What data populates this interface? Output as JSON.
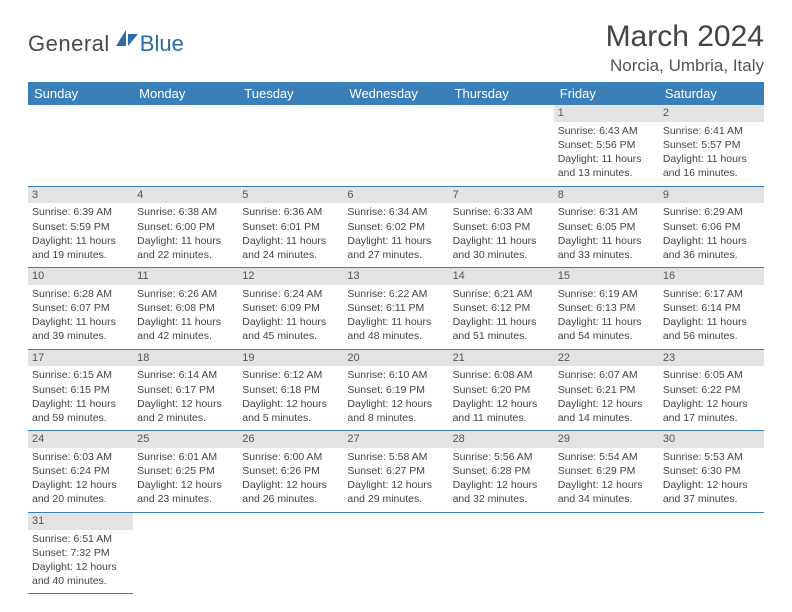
{
  "logo": {
    "general": "General",
    "blue": "Blue"
  },
  "title": "March 2024",
  "location": "Norcia, Umbria, Italy",
  "colors": {
    "header_bg": "#3a7fb8",
    "header_text": "#ffffff",
    "daynum_bg": "#e3e3e3",
    "row_border": "#3a7fb8",
    "body_text": "#444444",
    "logo_gray": "#4a4a4a",
    "logo_blue": "#2a6da8"
  },
  "weekdays": [
    "Sunday",
    "Monday",
    "Tuesday",
    "Wednesday",
    "Thursday",
    "Friday",
    "Saturday"
  ],
  "first_weekday_index": 5,
  "days": [
    {
      "n": 1,
      "sunrise": "6:43 AM",
      "sunset": "5:56 PM",
      "daylight": "11 hours and 13 minutes."
    },
    {
      "n": 2,
      "sunrise": "6:41 AM",
      "sunset": "5:57 PM",
      "daylight": "11 hours and 16 minutes."
    },
    {
      "n": 3,
      "sunrise": "6:39 AM",
      "sunset": "5:59 PM",
      "daylight": "11 hours and 19 minutes."
    },
    {
      "n": 4,
      "sunrise": "6:38 AM",
      "sunset": "6:00 PM",
      "daylight": "11 hours and 22 minutes."
    },
    {
      "n": 5,
      "sunrise": "6:36 AM",
      "sunset": "6:01 PM",
      "daylight": "11 hours and 24 minutes."
    },
    {
      "n": 6,
      "sunrise": "6:34 AM",
      "sunset": "6:02 PM",
      "daylight": "11 hours and 27 minutes."
    },
    {
      "n": 7,
      "sunrise": "6:33 AM",
      "sunset": "6:03 PM",
      "daylight": "11 hours and 30 minutes."
    },
    {
      "n": 8,
      "sunrise": "6:31 AM",
      "sunset": "6:05 PM",
      "daylight": "11 hours and 33 minutes."
    },
    {
      "n": 9,
      "sunrise": "6:29 AM",
      "sunset": "6:06 PM",
      "daylight": "11 hours and 36 minutes."
    },
    {
      "n": 10,
      "sunrise": "6:28 AM",
      "sunset": "6:07 PM",
      "daylight": "11 hours and 39 minutes."
    },
    {
      "n": 11,
      "sunrise": "6:26 AM",
      "sunset": "6:08 PM",
      "daylight": "11 hours and 42 minutes."
    },
    {
      "n": 12,
      "sunrise": "6:24 AM",
      "sunset": "6:09 PM",
      "daylight": "11 hours and 45 minutes."
    },
    {
      "n": 13,
      "sunrise": "6:22 AM",
      "sunset": "6:11 PM",
      "daylight": "11 hours and 48 minutes."
    },
    {
      "n": 14,
      "sunrise": "6:21 AM",
      "sunset": "6:12 PM",
      "daylight": "11 hours and 51 minutes."
    },
    {
      "n": 15,
      "sunrise": "6:19 AM",
      "sunset": "6:13 PM",
      "daylight": "11 hours and 54 minutes."
    },
    {
      "n": 16,
      "sunrise": "6:17 AM",
      "sunset": "6:14 PM",
      "daylight": "11 hours and 56 minutes."
    },
    {
      "n": 17,
      "sunrise": "6:15 AM",
      "sunset": "6:15 PM",
      "daylight": "11 hours and 59 minutes."
    },
    {
      "n": 18,
      "sunrise": "6:14 AM",
      "sunset": "6:17 PM",
      "daylight": "12 hours and 2 minutes."
    },
    {
      "n": 19,
      "sunrise": "6:12 AM",
      "sunset": "6:18 PM",
      "daylight": "12 hours and 5 minutes."
    },
    {
      "n": 20,
      "sunrise": "6:10 AM",
      "sunset": "6:19 PM",
      "daylight": "12 hours and 8 minutes."
    },
    {
      "n": 21,
      "sunrise": "6:08 AM",
      "sunset": "6:20 PM",
      "daylight": "12 hours and 11 minutes."
    },
    {
      "n": 22,
      "sunrise": "6:07 AM",
      "sunset": "6:21 PM",
      "daylight": "12 hours and 14 minutes."
    },
    {
      "n": 23,
      "sunrise": "6:05 AM",
      "sunset": "6:22 PM",
      "daylight": "12 hours and 17 minutes."
    },
    {
      "n": 24,
      "sunrise": "6:03 AM",
      "sunset": "6:24 PM",
      "daylight": "12 hours and 20 minutes."
    },
    {
      "n": 25,
      "sunrise": "6:01 AM",
      "sunset": "6:25 PM",
      "daylight": "12 hours and 23 minutes."
    },
    {
      "n": 26,
      "sunrise": "6:00 AM",
      "sunset": "6:26 PM",
      "daylight": "12 hours and 26 minutes."
    },
    {
      "n": 27,
      "sunrise": "5:58 AM",
      "sunset": "6:27 PM",
      "daylight": "12 hours and 29 minutes."
    },
    {
      "n": 28,
      "sunrise": "5:56 AM",
      "sunset": "6:28 PM",
      "daylight": "12 hours and 32 minutes."
    },
    {
      "n": 29,
      "sunrise": "5:54 AM",
      "sunset": "6:29 PM",
      "daylight": "12 hours and 34 minutes."
    },
    {
      "n": 30,
      "sunrise": "5:53 AM",
      "sunset": "6:30 PM",
      "daylight": "12 hours and 37 minutes."
    },
    {
      "n": 31,
      "sunrise": "6:51 AM",
      "sunset": "7:32 PM",
      "daylight": "12 hours and 40 minutes."
    }
  ],
  "labels": {
    "sunrise": "Sunrise:",
    "sunset": "Sunset:",
    "daylight": "Daylight:"
  }
}
